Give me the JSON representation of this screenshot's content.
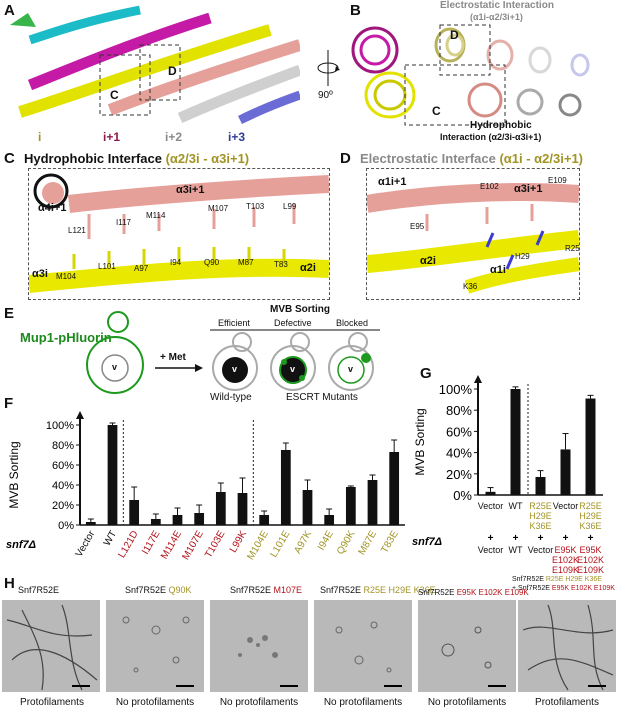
{
  "panels": {
    "A": "A",
    "B": "B",
    "C": "C",
    "D": "D",
    "E": "E",
    "F": "F",
    "G": "G",
    "H": "H"
  },
  "panelA": {
    "box_c": "C",
    "box_d": "D",
    "subunits": [
      "i",
      "i+1",
      "i+2",
      "i+3"
    ],
    "subunit_colors": [
      "#a4a000",
      "#8b1a4a",
      "#7a7a7a",
      "#303a9a"
    ],
    "rotation": "90º"
  },
  "panelB": {
    "electrostatic_title": "Electrostatic Interaction",
    "electrostatic_sub": "(α1i-α2/3i+1)",
    "box_d": "D",
    "box_c": "C",
    "hydrophobic_title": "Hydrophobic",
    "hydrophobic_sub": "Interaction (α2/3i-α3i+1)"
  },
  "panelC": {
    "title": "Hydrophobic Interface",
    "subtitle": "(α2/3i - α3i+1)",
    "helices": [
      "α4i+1",
      "α3i+1",
      "α3i",
      "α2i"
    ],
    "residues_top": [
      "L121",
      "I117",
      "M114",
      "M107",
      "T103",
      "L99"
    ],
    "residues_bottom": [
      "M104",
      "L101",
      "A97",
      "I94",
      "Q90",
      "M87",
      "T83"
    ]
  },
  "panelD": {
    "title": "Electrostatic Interface",
    "subtitle": "(α1i - α2/3i+1)",
    "helices": [
      "α1i+1",
      "α3i+1",
      "α2i",
      "α1i"
    ],
    "residues": [
      "E95",
      "E102",
      "E109",
      "R25",
      "H29",
      "K36"
    ]
  },
  "panelE": {
    "reporter": "Mup1-pHluorin",
    "treatment": "+ Met",
    "vacuole": "v",
    "header": "MVB Sorting",
    "states": [
      "Efficient",
      "Defective",
      "Blocked"
    ],
    "wild_type": "Wild-type",
    "mutants": "ESCRT Mutants"
  },
  "chart_data": [
    {
      "type": "bar",
      "panel": "F",
      "ylabel": "MVB Sorting",
      "ylim": [
        0,
        100
      ],
      "yticks": [
        "0%",
        "20%",
        "40%",
        "60%",
        "80%",
        "100%"
      ],
      "row_label": "snf7Δ",
      "categories": [
        "Vector",
        "WT",
        "L121D",
        "I117E",
        "M114E",
        "M107E",
        "T103E",
        "L99K",
        "M104E",
        "L101E",
        "A97K",
        "I94E",
        "Q90K",
        "M87E",
        "T83E"
      ],
      "category_colors": [
        "#111111",
        "#111111",
        "#b3121b",
        "#b3121b",
        "#b3121b",
        "#b3121b",
        "#b3121b",
        "#b3121b",
        "#a19425",
        "#a19425",
        "#a19425",
        "#a19425",
        "#a19425",
        "#a19425",
        "#a19425"
      ],
      "values": [
        3,
        100,
        25,
        6,
        10,
        12,
        33,
        32,
        10,
        75,
        35,
        10,
        38,
        45,
        73
      ],
      "errors": [
        3,
        2,
        13,
        5,
        7,
        8,
        9,
        15,
        4,
        7,
        10,
        6,
        1,
        5,
        12
      ]
    },
    {
      "type": "bar",
      "panel": "G",
      "ylabel": "MVB Sorting",
      "ylim": [
        0,
        100
      ],
      "yticks": [
        "0%",
        "20%",
        "40%",
        "60%",
        "80%",
        "100%"
      ],
      "row_label": "snf7Δ",
      "values": [
        3,
        100,
        17,
        43,
        91
      ],
      "errors": [
        4,
        2,
        6,
        15,
        3
      ],
      "row1": [
        "Vector",
        "WT",
        "R25E H29E K36E",
        "Vector",
        "R25E H29E K36E"
      ],
      "row2": [
        "+",
        "+",
        "+",
        "+",
        "+"
      ],
      "row3": [
        "Vector",
        "WT",
        "Vector",
        "E95K E102K E109K",
        "E95K E102K E109K"
      ]
    }
  ],
  "panelH": {
    "images": [
      {
        "title": "Snf7R52E",
        "mut": "",
        "caption": "Protofilaments"
      },
      {
        "title": "Snf7R52E",
        "mut": "Q90K",
        "caption": "No protofilaments"
      },
      {
        "title": "Snf7R52E",
        "mut": "M107E",
        "caption": "No protofilaments"
      },
      {
        "title": "Snf7R52E",
        "mut": "R25E H29E K36E",
        "caption": "No protofilaments"
      },
      {
        "title": "Snf7R52E",
        "mut": "E95K E102K E109K",
        "caption": "No protofilaments"
      },
      {
        "title": "Snf7R52E",
        "mut": "R25E H29E K36E",
        "title2": "+ Snf7R52E",
        "mut2": "E95K E102K E109K",
        "caption": "Protofilaments"
      }
    ]
  }
}
